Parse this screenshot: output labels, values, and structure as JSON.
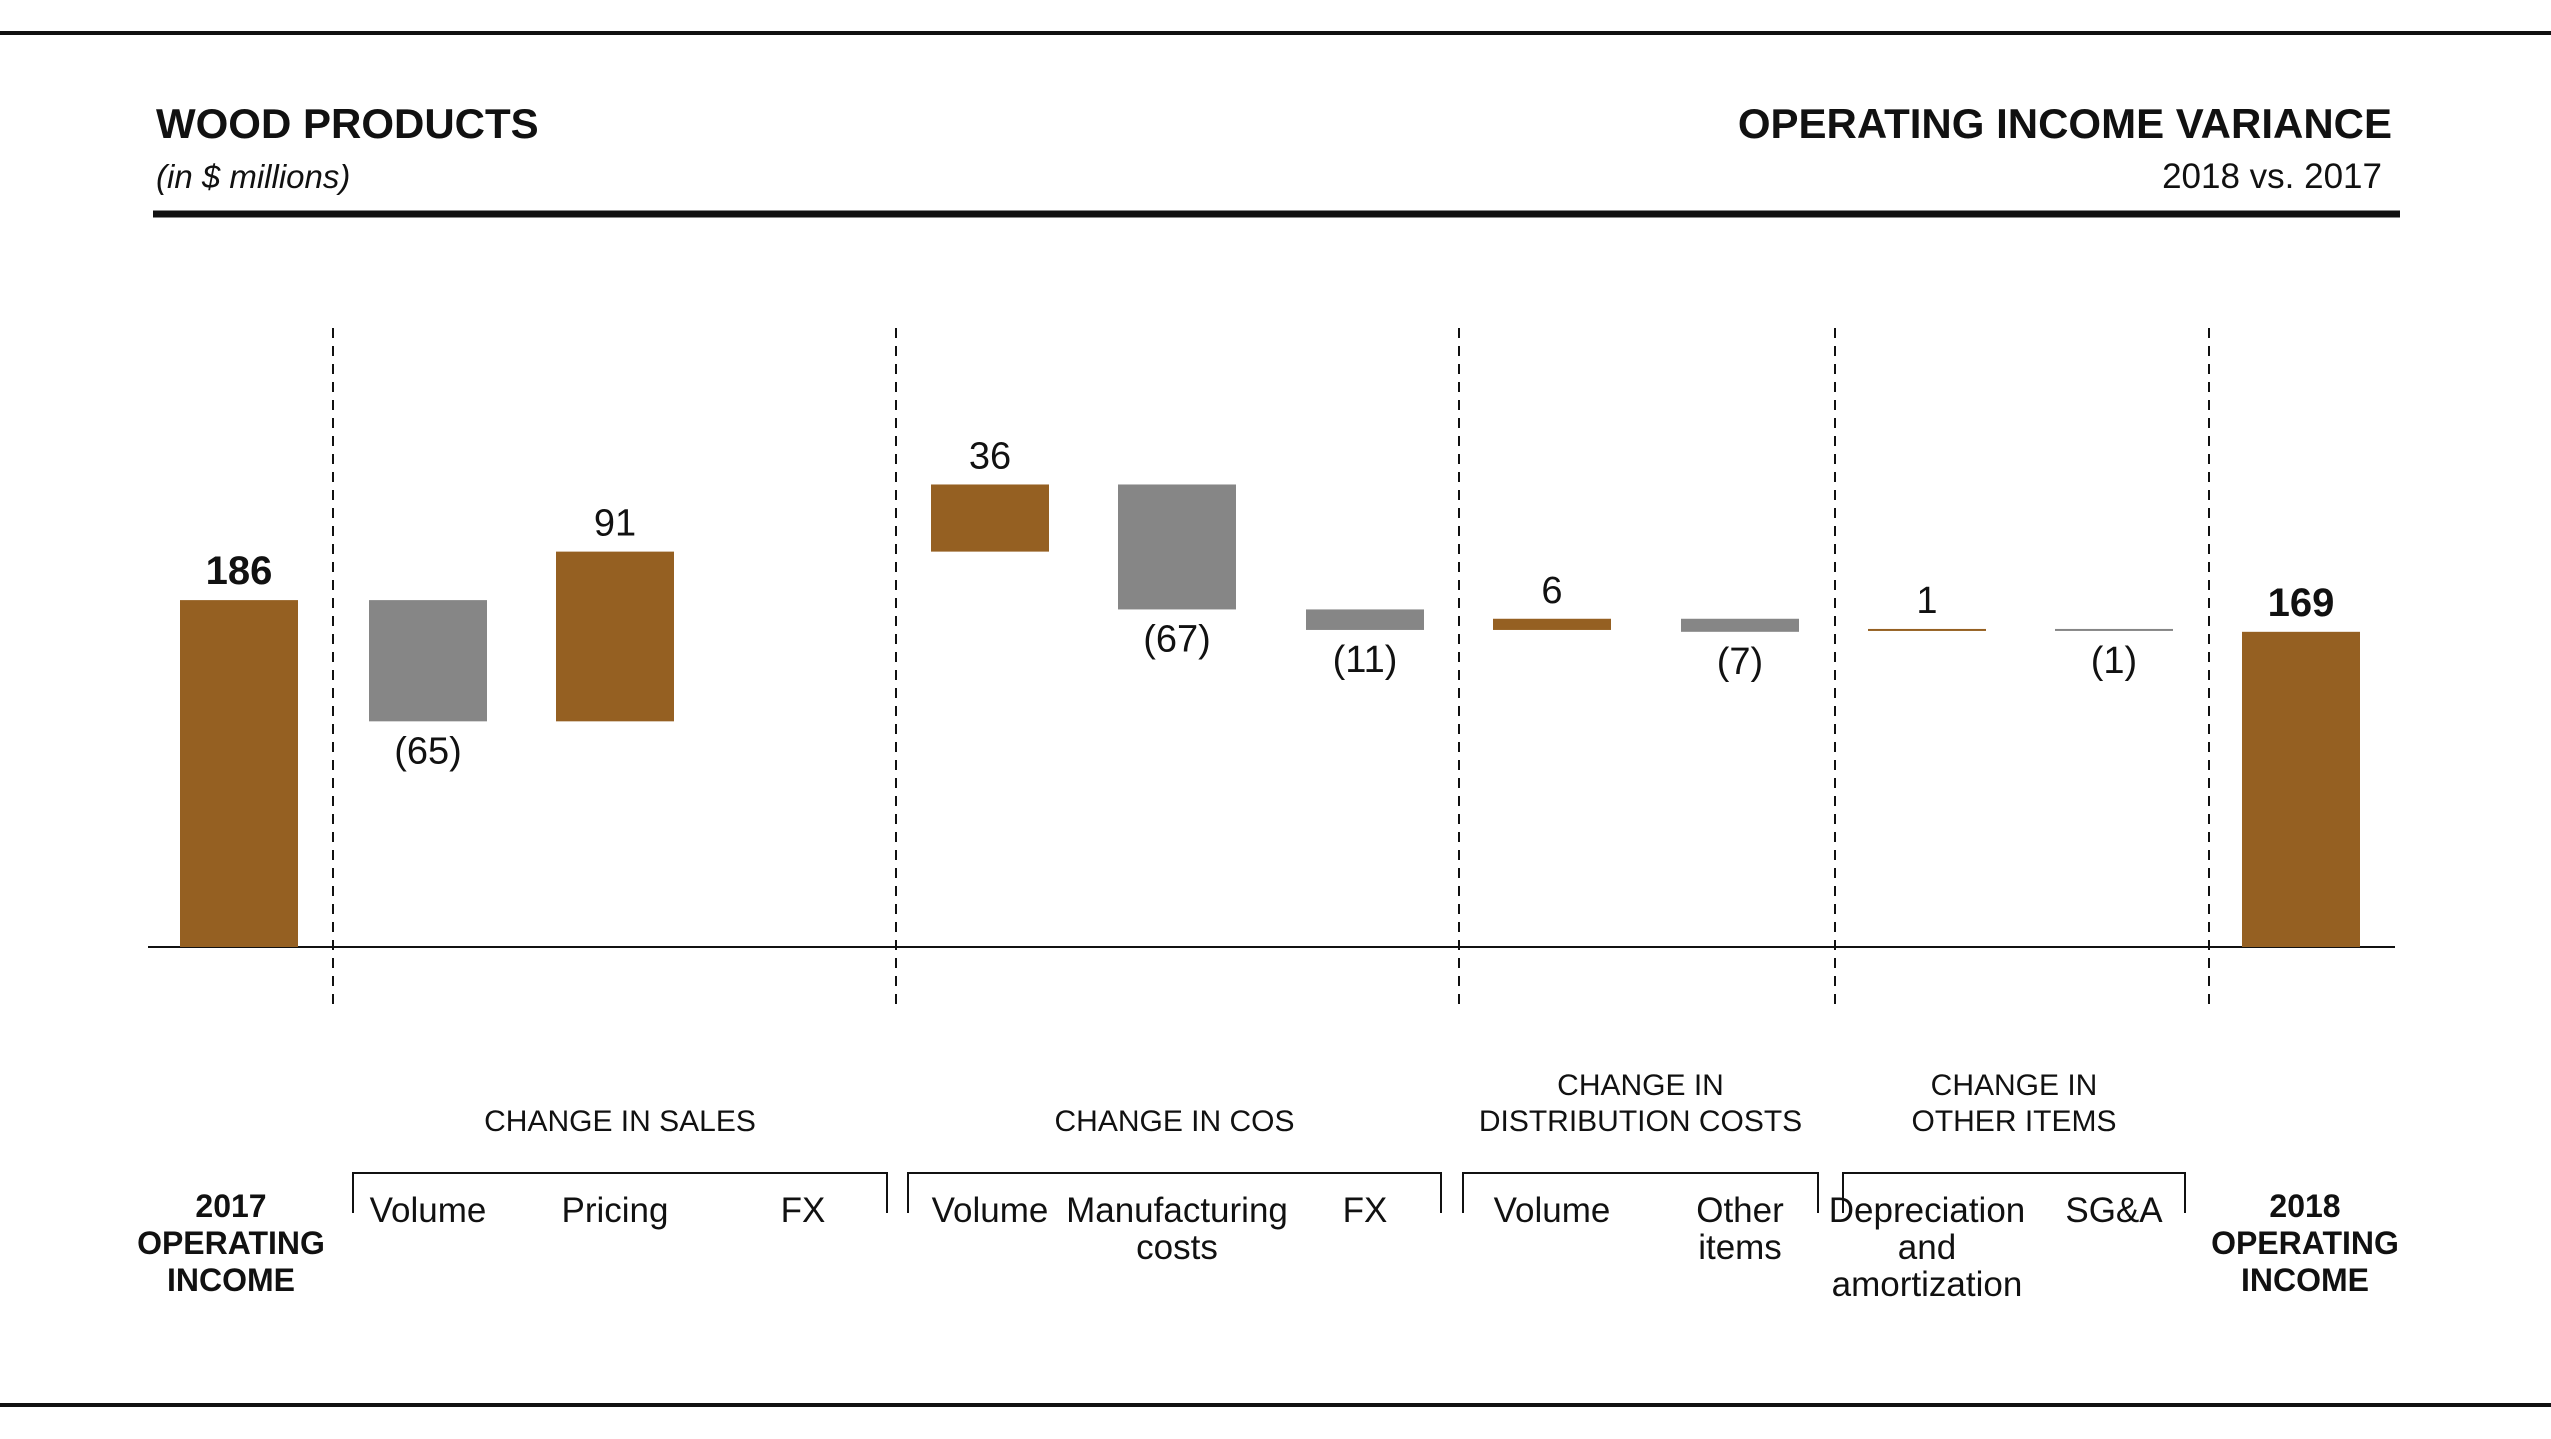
{
  "header": {
    "title_left": "WOOD PRODUCTS",
    "subtitle_left": "(in $ millions)",
    "title_right": "OPERATING INCOME VARIANCE",
    "subtitle_right": "2018 vs. 2017"
  },
  "colors": {
    "increase": "#956022",
    "decrease": "#868686",
    "total": "#956022",
    "rule": "#111111",
    "text": "#111111"
  },
  "chart_data": {
    "type": "bar",
    "subtype": "waterfall",
    "title": "OPERATING INCOME VARIANCE",
    "subtitle": "2018 vs. 2017",
    "unit_note": "(in $ millions)",
    "start": {
      "name": "2017 OPERATING INCOME",
      "value": 186,
      "label": "186"
    },
    "end": {
      "name": "2018 OPERATING INCOME",
      "value": 169,
      "label": "169"
    },
    "groups": [
      {
        "name": "CHANGE IN SALES",
        "steps": [
          {
            "category": "Volume",
            "value": -65,
            "label": "(65)"
          },
          {
            "category": "Pricing",
            "value": 91,
            "label": "91"
          },
          {
            "category": "FX",
            "value": 0,
            "label": ""
          }
        ]
      },
      {
        "name": "CHANGE IN COS",
        "steps": [
          {
            "category": "Volume",
            "value": 36,
            "label": "36"
          },
          {
            "category": "Manufacturing costs",
            "value": -67,
            "label": "(67)"
          },
          {
            "category": "FX",
            "value": -11,
            "label": "(11)"
          }
        ]
      },
      {
        "name": "CHANGE IN DISTRIBUTION COSTS",
        "steps": [
          {
            "category": "Volume",
            "value": 6,
            "label": "6"
          },
          {
            "category": "Other items",
            "value": -7,
            "label": "(7)"
          }
        ]
      },
      {
        "name": "CHANGE IN OTHER ITEMS",
        "steps": [
          {
            "category": "Depreciation and amortization",
            "value": 1,
            "label": "1"
          },
          {
            "category": "SG&A",
            "value": -1,
            "label": "(1)"
          }
        ]
      }
    ],
    "legend": "none",
    "grid": false
  }
}
